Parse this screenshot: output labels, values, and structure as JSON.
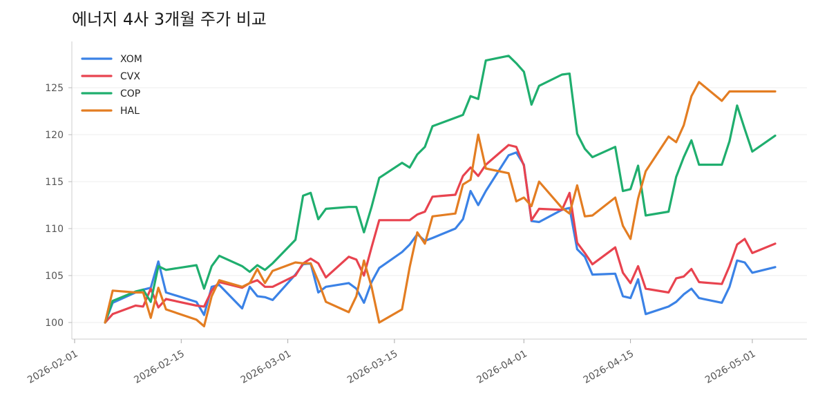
{
  "chart_data": {
    "type": "line",
    "title": "에너지 4사 3개월 주가 비교",
    "xlabel": "",
    "ylabel": "",
    "x_axis_type": "date",
    "xlim": [
      "2026-02-01",
      "2026-05-07"
    ],
    "ylim": [
      98,
      129.5
    ],
    "x_ticks": [
      "2026-02-01",
      "2026-02-15",
      "2026-03-01",
      "2026-03-15",
      "2026-04-01",
      "2026-04-15",
      "2026-05-01"
    ],
    "y_ticks": [
      100,
      105,
      110,
      115,
      120,
      125
    ],
    "grid": "horizontal",
    "legend_position": "top-left",
    "x": [
      "2026-02-05",
      "2026-02-06",
      "2026-02-09",
      "2026-02-10",
      "2026-02-11",
      "2026-02-12",
      "2026-02-13",
      "2026-02-17",
      "2026-02-18",
      "2026-02-19",
      "2026-02-20",
      "2026-02-23",
      "2026-02-24",
      "2026-02-25",
      "2026-02-26",
      "2026-02-27",
      "2026-03-02",
      "2026-03-03",
      "2026-03-04",
      "2026-03-05",
      "2026-03-06",
      "2026-03-09",
      "2026-03-10",
      "2026-03-11",
      "2026-03-12",
      "2026-03-13",
      "2026-03-16",
      "2026-03-17",
      "2026-03-18",
      "2026-03-19",
      "2026-03-20",
      "2026-03-23",
      "2026-03-24",
      "2026-03-25",
      "2026-03-26",
      "2026-03-27",
      "2026-03-30",
      "2026-03-31",
      "2026-04-01",
      "2026-04-02",
      "2026-04-03",
      "2026-04-06",
      "2026-04-07",
      "2026-04-08",
      "2026-04-09",
      "2026-04-10",
      "2026-04-13",
      "2026-04-14",
      "2026-04-15",
      "2026-04-16",
      "2026-04-17",
      "2026-04-20",
      "2026-04-21",
      "2026-04-22",
      "2026-04-23",
      "2026-04-24",
      "2026-04-27",
      "2026-04-28",
      "2026-04-29",
      "2026-04-30",
      "2026-05-01",
      "2026-05-04"
    ],
    "series": [
      {
        "name": "XOM",
        "color": "#3b82e6",
        "values": [
          100.0,
          102.1,
          103.2,
          103.5,
          103.7,
          106.5,
          103.2,
          102.2,
          100.8,
          103.8,
          104.0,
          101.5,
          103.8,
          102.8,
          102.7,
          102.4,
          105.1,
          106.2,
          106.3,
          103.2,
          103.8,
          104.2,
          103.6,
          102.1,
          104.3,
          105.8,
          107.5,
          108.3,
          109.4,
          108.7,
          109.0,
          110.0,
          111.0,
          114.0,
          112.5,
          114.0,
          117.8,
          118.1,
          116.8,
          110.8,
          110.7,
          112.0,
          112.2,
          107.8,
          107.0,
          105.1,
          105.2,
          102.8,
          102.6,
          104.6,
          100.9,
          101.7,
          102.2,
          103.0,
          103.6,
          102.6,
          102.1,
          103.8,
          106.6,
          106.4,
          105.3,
          105.9
        ]
      },
      {
        "name": "CVX",
        "color": "#e8434f",
        "values": [
          100.0,
          100.9,
          101.8,
          101.7,
          103.6,
          101.6,
          102.5,
          101.8,
          101.7,
          103.4,
          104.3,
          103.7,
          104.2,
          104.5,
          103.8,
          103.8,
          105.0,
          106.3,
          106.8,
          106.3,
          104.8,
          107.0,
          106.7,
          105.0,
          108.0,
          110.9,
          110.9,
          110.9,
          111.5,
          111.8,
          113.4,
          113.6,
          115.6,
          116.5,
          115.6,
          116.8,
          118.9,
          118.7,
          116.7,
          110.9,
          112.1,
          112.0,
          113.8,
          108.5,
          107.4,
          106.2,
          108.0,
          105.3,
          104.2,
          106.0,
          103.6,
          103.2,
          104.7,
          104.9,
          105.7,
          104.3,
          104.1,
          106.0,
          108.3,
          108.9,
          107.4,
          108.4
        ]
      },
      {
        "name": "COP",
        "color": "#1fae6e",
        "values": [
          100.0,
          102.3,
          103.3,
          103.5,
          102.2,
          106.0,
          105.6,
          106.1,
          103.6,
          106.0,
          107.1,
          106.0,
          105.4,
          106.1,
          105.6,
          106.3,
          108.8,
          113.5,
          113.8,
          111.0,
          112.1,
          112.3,
          112.3,
          109.6,
          112.3,
          115.4,
          117.0,
          116.5,
          117.9,
          118.7,
          120.9,
          121.8,
          122.1,
          124.1,
          123.8,
          127.9,
          128.4,
          127.6,
          126.7,
          123.2,
          125.2,
          126.4,
          126.5,
          120.1,
          118.5,
          117.6,
          118.7,
          114.0,
          114.2,
          116.7,
          111.4,
          111.8,
          115.5,
          117.6,
          119.4,
          116.8,
          116.8,
          119.3,
          123.1,
          120.6,
          118.2,
          119.9
        ]
      },
      {
        "name": "HAL",
        "color": "#e37d22",
        "values": [
          100.0,
          103.4,
          103.2,
          103.2,
          100.5,
          103.7,
          101.4,
          100.3,
          99.6,
          102.8,
          104.5,
          103.8,
          104.2,
          105.7,
          104.2,
          105.5,
          106.4,
          106.3,
          106.3,
          104.4,
          102.2,
          101.1,
          102.8,
          106.6,
          103.8,
          100.0,
          101.4,
          105.9,
          109.6,
          108.4,
          111.3,
          111.6,
          114.7,
          115.2,
          120.0,
          116.4,
          115.9,
          112.9,
          113.3,
          112.4,
          115.0,
          112.2,
          111.6,
          114.6,
          111.3,
          111.4,
          113.3,
          110.3,
          108.9,
          113.2,
          116.1,
          119.8,
          119.2,
          121.0,
          124.1,
          125.6,
          123.6,
          124.6,
          124.6,
          124.6,
          124.6,
          124.6
        ]
      }
    ]
  }
}
